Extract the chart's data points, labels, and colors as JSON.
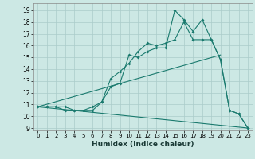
{
  "title": "",
  "xlabel": "Humidex (Indice chaleur)",
  "bg_color": "#cce8e4",
  "grid_color": "#aaccca",
  "line_color": "#1a7a6e",
  "xlim": [
    -0.5,
    23.5
  ],
  "ylim": [
    8.8,
    19.6
  ],
  "xticks": [
    0,
    1,
    2,
    3,
    4,
    5,
    6,
    7,
    8,
    9,
    10,
    11,
    12,
    13,
    14,
    15,
    16,
    17,
    18,
    19,
    20,
    21,
    22,
    23
  ],
  "yticks": [
    9,
    10,
    11,
    12,
    13,
    14,
    15,
    16,
    17,
    18,
    19
  ],
  "series1": [
    [
      0,
      10.8
    ],
    [
      1,
      10.8
    ],
    [
      2,
      10.8
    ],
    [
      3,
      10.8
    ],
    [
      4,
      10.5
    ],
    [
      5,
      10.5
    ],
    [
      6,
      10.5
    ],
    [
      7,
      11.2
    ],
    [
      8,
      12.5
    ],
    [
      9,
      12.8
    ],
    [
      10,
      15.2
    ],
    [
      11,
      15.0
    ],
    [
      12,
      15.5
    ],
    [
      13,
      15.8
    ],
    [
      14,
      15.8
    ],
    [
      15,
      19.0
    ],
    [
      16,
      18.2
    ],
    [
      17,
      17.2
    ],
    [
      18,
      18.2
    ],
    [
      19,
      16.5
    ],
    [
      20,
      14.8
    ],
    [
      21,
      10.5
    ],
    [
      22,
      10.2
    ],
    [
      23,
      9.0
    ]
  ],
  "series2": [
    [
      0,
      10.8
    ],
    [
      1,
      10.8
    ],
    [
      2,
      10.8
    ],
    [
      3,
      10.5
    ],
    [
      4,
      10.5
    ],
    [
      5,
      10.5
    ],
    [
      6,
      10.8
    ],
    [
      7,
      11.2
    ],
    [
      8,
      13.2
    ],
    [
      9,
      13.8
    ],
    [
      10,
      14.5
    ],
    [
      11,
      15.5
    ],
    [
      12,
      16.2
    ],
    [
      13,
      16.0
    ],
    [
      14,
      16.2
    ],
    [
      15,
      16.5
    ],
    [
      16,
      18.0
    ],
    [
      17,
      16.5
    ],
    [
      18,
      16.5
    ],
    [
      19,
      16.5
    ],
    [
      20,
      14.8
    ],
    [
      21,
      10.5
    ],
    [
      22,
      10.2
    ],
    [
      23,
      9.0
    ]
  ],
  "series3_x": [
    0,
    23
  ],
  "series3_y": [
    10.8,
    9.0
  ],
  "series4_x": [
    0,
    20
  ],
  "series4_y": [
    10.8,
    15.2
  ]
}
